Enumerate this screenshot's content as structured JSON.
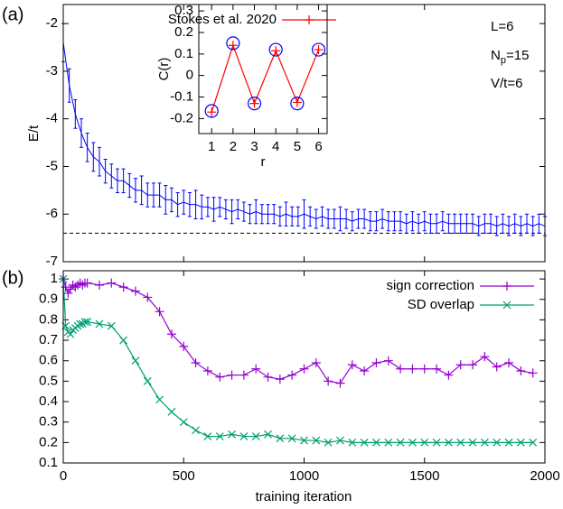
{
  "chart_data": [
    {
      "type": "errorbar",
      "panel_label": "(a)",
      "ylabel": "E/t",
      "color": "#0000ff",
      "annotations": [
        "L=6",
        [
          "N",
          "p",
          "=15"
        ],
        "V/t=6"
      ],
      "reference_line": -6.4,
      "xlim": [
        0,
        2000
      ],
      "xticks": [
        0,
        500,
        1000,
        1500,
        2000
      ],
      "xtick_labels": false,
      "ylim": [
        -7,
        -1.6
      ],
      "yticks": [
        -7,
        -6,
        -5,
        -4,
        -3,
        -2
      ],
      "x": [
        0,
        25,
        50,
        75,
        100,
        125,
        150,
        175,
        200,
        225,
        250,
        275,
        300,
        325,
        350,
        375,
        400,
        425,
        450,
        475,
        500,
        525,
        550,
        575,
        600,
        625,
        650,
        675,
        700,
        725,
        750,
        775,
        800,
        825,
        850,
        875,
        900,
        925,
        950,
        975,
        1000,
        1025,
        1050,
        1075,
        1100,
        1125,
        1150,
        1175,
        1200,
        1225,
        1250,
        1275,
        1300,
        1325,
        1350,
        1375,
        1400,
        1425,
        1450,
        1475,
        1500,
        1525,
        1550,
        1575,
        1600,
        1625,
        1650,
        1675,
        1700,
        1725,
        1750,
        1775,
        1800,
        1825,
        1850,
        1875,
        1900,
        1925,
        1950,
        1975,
        2000
      ],
      "values": [
        -2.4,
        -3.3,
        -3.9,
        -4.3,
        -4.6,
        -4.8,
        -4.9,
        -5.1,
        -5.2,
        -5.3,
        -5.3,
        -5.4,
        -5.5,
        -5.5,
        -5.6,
        -5.6,
        -5.6,
        -5.7,
        -5.7,
        -5.8,
        -5.75,
        -5.8,
        -5.8,
        -5.85,
        -5.85,
        -5.9,
        -5.85,
        -5.9,
        -5.95,
        -5.9,
        -5.95,
        -6.0,
        -5.95,
        -6.0,
        -6.0,
        -6.0,
        -6.05,
        -6.0,
        -6.05,
        -6.05,
        -6.0,
        -6.05,
        -6.1,
        -6.05,
        -6.1,
        -6.1,
        -6.1,
        -6.1,
        -6.15,
        -6.1,
        -6.1,
        -6.15,
        -6.15,
        -6.1,
        -6.15,
        -6.15,
        -6.15,
        -6.2,
        -6.15,
        -6.2,
        -6.15,
        -6.2,
        -6.2,
        -6.15,
        -6.2,
        -6.2,
        -6.2,
        -6.2,
        -6.2,
        -6.25,
        -6.2,
        -6.2,
        -6.25,
        -6.2,
        -6.25,
        -6.2,
        -6.25,
        -6.2,
        -6.25,
        -6.2,
        -6.25
      ],
      "errors": [
        0.4,
        0.35,
        0.3,
        0.3,
        0.3,
        0.3,
        0.3,
        0.25,
        0.25,
        0.25,
        0.25,
        0.25,
        0.25,
        0.3,
        0.25,
        0.25,
        0.25,
        0.3,
        0.25,
        0.25,
        0.25,
        0.25,
        0.3,
        0.25,
        0.2,
        0.25,
        0.2,
        0.2,
        0.25,
        0.2,
        0.2,
        0.2,
        0.25,
        0.2,
        0.2,
        0.2,
        0.2,
        0.25,
        0.2,
        0.2,
        0.3,
        0.2,
        0.2,
        0.2,
        0.2,
        0.2,
        0.25,
        0.2,
        0.2,
        0.2,
        0.2,
        0.2,
        0.2,
        0.2,
        0.2,
        0.2,
        0.2,
        0.2,
        0.2,
        0.2,
        0.2,
        0.2,
        0.2,
        0.2,
        0.2,
        0.2,
        0.2,
        0.2,
        0.2,
        0.2,
        0.2,
        0.2,
        0.2,
        0.2,
        0.2,
        0.2,
        0.2,
        0.2,
        0.2,
        0.2,
        0.2
      ]
    },
    {
      "type": "line",
      "xlabel": "r",
      "ylabel": "C(r)",
      "xlim": [
        0.4,
        6.4
      ],
      "xticks": [
        1,
        2,
        3,
        4,
        5,
        6
      ],
      "xtick_labels": true,
      "ylim": [
        -0.27,
        0.33
      ],
      "yticks": [
        -0.2,
        -0.1,
        0,
        0.1,
        0.2,
        0.3
      ],
      "legend": "upper center",
      "x": [
        1,
        2,
        3,
        4,
        5,
        6
      ],
      "series": [
        {
          "name": "Stokes et al. 2020",
          "color": "#ff0000",
          "marker": "plus",
          "line": true,
          "values": [
            -0.17,
            0.14,
            -0.13,
            0.115,
            -0.125,
            0.12
          ]
        },
        {
          "color": "#0000ff",
          "marker": "circle",
          "line": false,
          "values": [
            -0.165,
            0.15,
            -0.13,
            0.12,
            -0.13,
            0.12
          ]
        }
      ]
    },
    {
      "type": "line",
      "panel_label": "(b)",
      "xlabel": "training iteration",
      "xlim": [
        0,
        2000
      ],
      "xticks": [
        0,
        500,
        1000,
        1500,
        2000
      ],
      "xtick_labels": true,
      "ylim": [
        0.1,
        1.04
      ],
      "yticks": [
        0.1,
        0.2,
        0.3,
        0.4,
        0.5,
        0.6,
        0.7,
        0.8,
        0.9,
        1
      ],
      "legend": "upper right",
      "x": [
        0,
        10,
        20,
        30,
        40,
        50,
        60,
        70,
        80,
        90,
        100,
        150,
        200,
        250,
        300,
        350,
        400,
        450,
        500,
        550,
        600,
        650,
        700,
        750,
        800,
        850,
        900,
        950,
        1000,
        1050,
        1100,
        1150,
        1200,
        1250,
        1300,
        1350,
        1400,
        1450,
        1500,
        1550,
        1600,
        1650,
        1700,
        1750,
        1800,
        1850,
        1900,
        1950
      ],
      "series": [
        {
          "name": "sign correction",
          "color": "#9400d3",
          "marker": "plus",
          "line": true,
          "values": [
            1.0,
            0.96,
            0.93,
            0.95,
            0.97,
            0.96,
            0.97,
            0.98,
            0.97,
            0.98,
            0.98,
            0.97,
            0.98,
            0.96,
            0.94,
            0.91,
            0.84,
            0.73,
            0.67,
            0.59,
            0.55,
            0.52,
            0.53,
            0.53,
            0.56,
            0.52,
            0.51,
            0.53,
            0.56,
            0.59,
            0.5,
            0.49,
            0.58,
            0.55,
            0.59,
            0.6,
            0.56,
            0.56,
            0.56,
            0.56,
            0.53,
            0.58,
            0.58,
            0.62,
            0.57,
            0.59,
            0.55,
            0.54
          ]
        },
        {
          "name": "SD overlap",
          "color": "#009e73",
          "marker": "cross",
          "line": true,
          "values": [
            1.0,
            0.77,
            0.74,
            0.73,
            0.75,
            0.76,
            0.77,
            0.78,
            0.78,
            0.79,
            0.79,
            0.78,
            0.77,
            0.7,
            0.6,
            0.5,
            0.41,
            0.35,
            0.3,
            0.26,
            0.23,
            0.23,
            0.24,
            0.23,
            0.23,
            0.24,
            0.22,
            0.22,
            0.21,
            0.21,
            0.2,
            0.21,
            0.2,
            0.2,
            0.2,
            0.2,
            0.2,
            0.2,
            0.2,
            0.2,
            0.2,
            0.2,
            0.2,
            0.2,
            0.2,
            0.2,
            0.2,
            0.2
          ]
        }
      ]
    }
  ]
}
